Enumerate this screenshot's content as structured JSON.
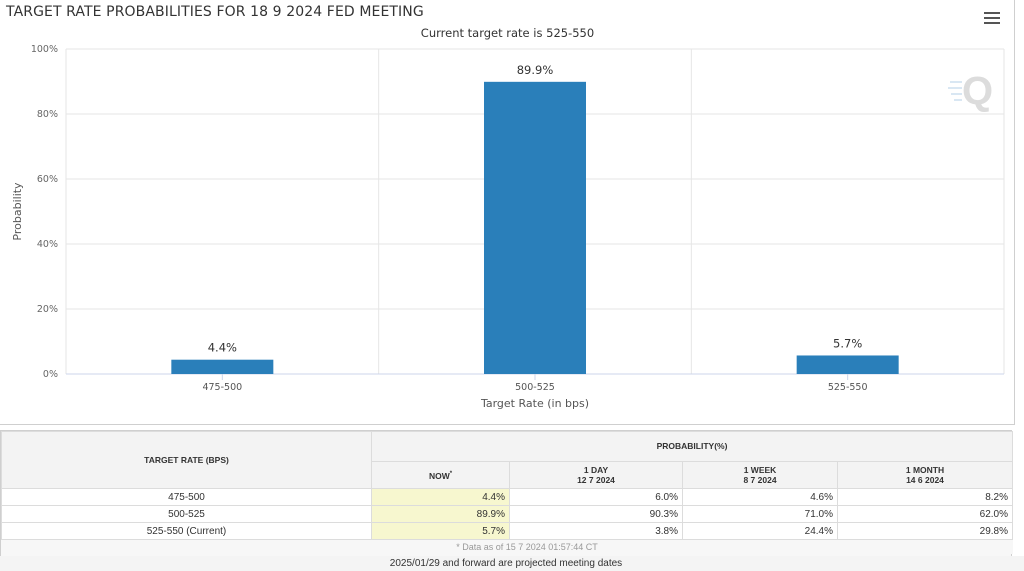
{
  "header": {
    "title": "TARGET RATE PROBABILITIES FOR 18 9 2024 FED MEETING",
    "subtitle": "Current target rate is 525-550"
  },
  "menu_icon": "hamburger-menu-icon",
  "logo_icon": "q-logo-icon",
  "colors": {
    "bar": "#2a7fba",
    "grid": "#e6e6e6",
    "now_column": "#f7f7cf"
  },
  "chart_data": {
    "type": "bar",
    "title": "TARGET RATE PROBABILITIES FOR 18 9 2024 FED MEETING",
    "subtitle": "Current target rate is 525-550",
    "xlabel": "Target Rate (in bps)",
    "ylabel": "Probability",
    "categories": [
      "475-500",
      "500-525",
      "525-550"
    ],
    "values": [
      4.4,
      89.9,
      5.7
    ],
    "data_labels": [
      "4.4%",
      "89.9%",
      "5.7%"
    ],
    "ylim": [
      0,
      100
    ],
    "yticks": [
      "0%",
      "20%",
      "40%",
      "60%",
      "80%",
      "100%"
    ],
    "ytick_values": [
      0,
      20,
      40,
      60,
      80,
      100
    ],
    "grid": true
  },
  "table": {
    "rate_header": "TARGET RATE (BPS)",
    "prob_header": "PROBABILITY(%)",
    "columns": [
      {
        "label": "NOW",
        "sup": "*",
        "date": ""
      },
      {
        "label": "1 DAY",
        "date": "12 7 2024"
      },
      {
        "label": "1 WEEK",
        "date": "8 7 2024"
      },
      {
        "label": "1 MONTH",
        "date": "14 6 2024"
      }
    ],
    "rows": [
      {
        "rate": "475-500",
        "values": [
          "4.4%",
          "6.0%",
          "4.6%",
          "8.2%"
        ]
      },
      {
        "rate": "500-525",
        "values": [
          "89.9%",
          "90.3%",
          "71.0%",
          "62.0%"
        ]
      },
      {
        "rate": "525-550 (Current)",
        "values": [
          "5.7%",
          "3.8%",
          "24.4%",
          "29.8%"
        ]
      }
    ],
    "data_note": "* Data as of 15 7 2024 01:57:44 CT"
  },
  "footer_note": "2025/01/29 and forward are projected meeting dates"
}
